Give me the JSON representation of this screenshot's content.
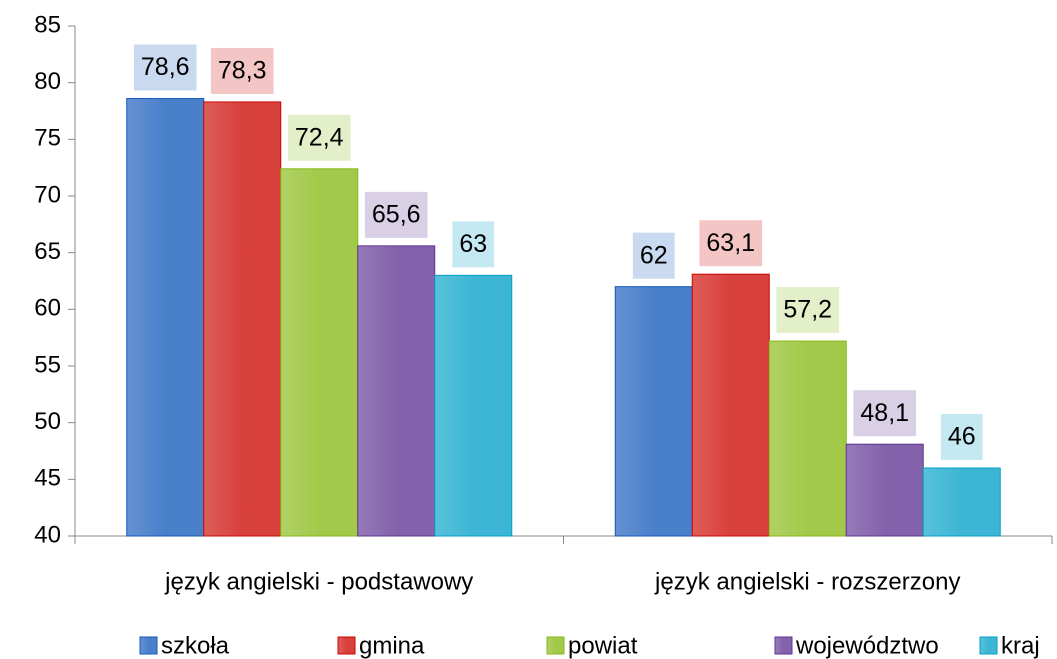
{
  "chart_data": {
    "type": "bar",
    "categories": [
      "język angielski - podstawowy",
      "język angielski - rozszerzony"
    ],
    "series": [
      {
        "name": "szkoła",
        "color": "#4a7fca",
        "values": [
          78.6,
          62
        ],
        "value_labels": [
          "78,6",
          "62"
        ]
      },
      {
        "name": "gmina",
        "color": "#d8403c",
        "values": [
          78.3,
          63.1
        ],
        "value_labels": [
          "78,3",
          "63,1"
        ]
      },
      {
        "name": "powiat",
        "color": "#a2c94a",
        "values": [
          72.4,
          57.2
        ],
        "value_labels": [
          "72,4",
          "57,2"
        ]
      },
      {
        "name": "województwo",
        "color": "#8462ab",
        "values": [
          65.6,
          48.1
        ],
        "value_labels": [
          "65,6",
          "48,1"
        ]
      },
      {
        "name": "kraj",
        "color": "#3cb6d4",
        "values": [
          63,
          46
        ],
        "value_labels": [
          "63",
          "46"
        ]
      }
    ],
    "ylim": [
      40,
      85
    ],
    "yticks": [
      40,
      45,
      50,
      55,
      60,
      65,
      70,
      75,
      80,
      85
    ],
    "legend": "bottom"
  }
}
